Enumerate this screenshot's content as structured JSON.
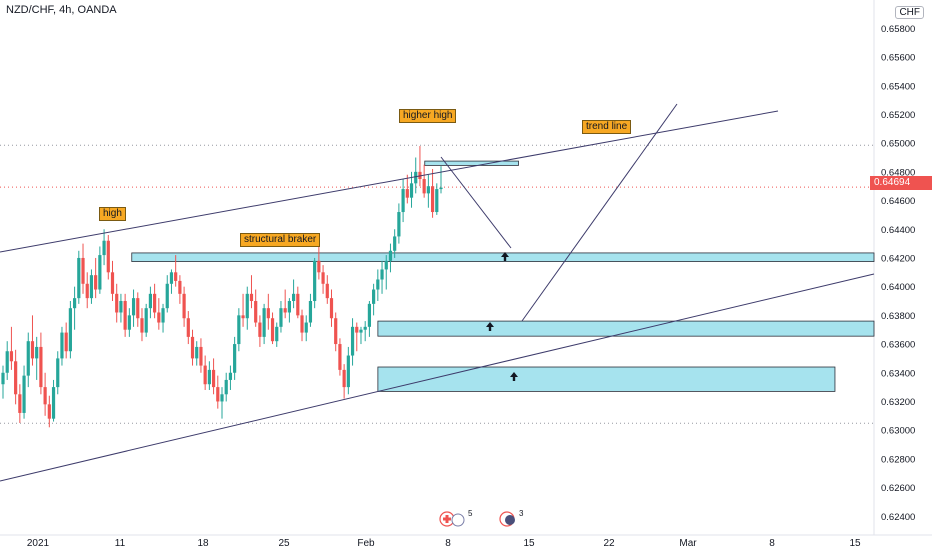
{
  "header": {
    "symbol_title": "NZD/CHF, 4h, OANDA",
    "currency": "CHF"
  },
  "colors": {
    "up": "#26a69a",
    "down": "#ef5350",
    "zone_fill": "#a6e3ee",
    "line": "#3d3b6b",
    "tag": "#f7a823",
    "price_tag": "#ef5350",
    "dotted": "#9598a1"
  },
  "annotations": {
    "higher_high": "higher high",
    "trend_line": "trend line",
    "high": "high",
    "structural_braker": "structural braker"
  },
  "price_label": "0.64694",
  "events": [
    {
      "icon": "flag-icon",
      "count": "5"
    },
    {
      "icon": "flag-icon",
      "count": "3"
    }
  ],
  "chart_data": {
    "type": "candlestick",
    "title": "NZD/CHF, 4h, OANDA",
    "ylim": [
      0.6236,
      0.659
    ],
    "y_ticks": [
      "0.65800",
      "0.65600",
      "0.65400",
      "0.65200",
      "0.65000",
      "0.64800",
      "0.64600",
      "0.64400",
      "0.64200",
      "0.64000",
      "0.63800",
      "0.63600",
      "0.63400",
      "0.63200",
      "0.63000",
      "0.62800",
      "0.62600",
      "0.62400"
    ],
    "x_ticks": [
      "2021",
      "11",
      "18",
      "25",
      "Feb",
      "8",
      "15",
      "22",
      "Mar",
      "8",
      "15"
    ],
    "last_price": 0.64694,
    "horizontal_levels": [
      0.64985,
      0.63048
    ],
    "zones": [
      {
        "from": "2021-01-09",
        "to": "2021-03-23",
        "low": 0.64175,
        "high": 0.64235
      },
      {
        "from": "2021-01-30",
        "to": "2021-03-23",
        "low": 0.63655,
        "high": 0.6376
      },
      {
        "from": "2021-01-30",
        "to": "2021-03-10",
        "low": 0.6327,
        "high": 0.6344
      },
      {
        "from": "2021-02-03",
        "to": "2021-02-11",
        "low": 0.64845,
        "high": 0.64875
      }
    ],
    "candles": [
      [
        0.6332,
        0.6345,
        0.6322,
        0.634
      ],
      [
        0.634,
        0.6362,
        0.6335,
        0.6355
      ],
      [
        0.6355,
        0.6372,
        0.6342,
        0.6348
      ],
      [
        0.6348,
        0.6356,
        0.6318,
        0.6325
      ],
      [
        0.6325,
        0.6332,
        0.6305,
        0.6312
      ],
      [
        0.6312,
        0.6345,
        0.6308,
        0.6338
      ],
      [
        0.6338,
        0.6368,
        0.633,
        0.6362
      ],
      [
        0.6362,
        0.638,
        0.6345,
        0.635
      ],
      [
        0.635,
        0.6365,
        0.6335,
        0.6358
      ],
      [
        0.6358,
        0.6368,
        0.6325,
        0.633
      ],
      [
        0.633,
        0.634,
        0.631,
        0.6318
      ],
      [
        0.6318,
        0.6324,
        0.6302,
        0.6308
      ],
      [
        0.6308,
        0.6335,
        0.6306,
        0.633
      ],
      [
        0.633,
        0.6355,
        0.6325,
        0.635
      ],
      [
        0.635,
        0.6372,
        0.6345,
        0.6368
      ],
      [
        0.6368,
        0.6375,
        0.635,
        0.6355
      ],
      [
        0.6355,
        0.639,
        0.635,
        0.6385
      ],
      [
        0.6385,
        0.64,
        0.637,
        0.6392
      ],
      [
        0.6392,
        0.6425,
        0.6388,
        0.642
      ],
      [
        0.642,
        0.643,
        0.6395,
        0.6402
      ],
      [
        0.6402,
        0.641,
        0.6385,
        0.6392
      ],
      [
        0.6392,
        0.6412,
        0.6388,
        0.6408
      ],
      [
        0.6408,
        0.642,
        0.6392,
        0.6398
      ],
      [
        0.6398,
        0.6428,
        0.6395,
        0.6422
      ],
      [
        0.6422,
        0.644,
        0.6415,
        0.6432
      ],
      [
        0.6432,
        0.6436,
        0.6405,
        0.641
      ],
      [
        0.641,
        0.6418,
        0.639,
        0.6395
      ],
      [
        0.6395,
        0.6402,
        0.6375,
        0.6382
      ],
      [
        0.6382,
        0.6395,
        0.6375,
        0.639
      ],
      [
        0.639,
        0.6395,
        0.6365,
        0.637
      ],
      [
        0.637,
        0.6385,
        0.6365,
        0.638
      ],
      [
        0.638,
        0.6398,
        0.6372,
        0.6392
      ],
      [
        0.6392,
        0.6396,
        0.6372,
        0.6378
      ],
      [
        0.6378,
        0.6385,
        0.6362,
        0.6368
      ],
      [
        0.6368,
        0.6388,
        0.6365,
        0.6385
      ],
      [
        0.6385,
        0.64,
        0.6378,
        0.6395
      ],
      [
        0.6395,
        0.6402,
        0.6378,
        0.6382
      ],
      [
        0.6382,
        0.6392,
        0.637,
        0.6375
      ],
      [
        0.6375,
        0.6388,
        0.6368,
        0.6385
      ],
      [
        0.6385,
        0.6408,
        0.6382,
        0.6402
      ],
      [
        0.6402,
        0.6412,
        0.6395,
        0.641
      ],
      [
        0.641,
        0.6422,
        0.64,
        0.6404
      ],
      [
        0.6404,
        0.6408,
        0.6388,
        0.6395
      ],
      [
        0.6395,
        0.64,
        0.6372,
        0.6378
      ],
      [
        0.6378,
        0.6383,
        0.636,
        0.6365
      ],
      [
        0.6365,
        0.637,
        0.6345,
        0.635
      ],
      [
        0.635,
        0.6362,
        0.6345,
        0.6358
      ],
      [
        0.6358,
        0.6364,
        0.634,
        0.6345
      ],
      [
        0.6345,
        0.6352,
        0.6328,
        0.6332
      ],
      [
        0.6332,
        0.6348,
        0.6328,
        0.6342
      ],
      [
        0.6342,
        0.635,
        0.6325,
        0.633
      ],
      [
        0.633,
        0.6338,
        0.6315,
        0.632
      ],
      [
        0.632,
        0.633,
        0.6308,
        0.6325
      ],
      [
        0.6325,
        0.634,
        0.632,
        0.6335
      ],
      [
        0.6335,
        0.6345,
        0.6328,
        0.634
      ],
      [
        0.634,
        0.6365,
        0.6335,
        0.636
      ],
      [
        0.636,
        0.6385,
        0.6355,
        0.638
      ],
      [
        0.638,
        0.6395,
        0.6372,
        0.6378
      ],
      [
        0.6378,
        0.64,
        0.637,
        0.6395
      ],
      [
        0.6395,
        0.6408,
        0.6385,
        0.639
      ],
      [
        0.639,
        0.6398,
        0.6372,
        0.6375
      ],
      [
        0.6375,
        0.638,
        0.6358,
        0.6365
      ],
      [
        0.6365,
        0.6388,
        0.636,
        0.6385
      ],
      [
        0.6385,
        0.6395,
        0.637,
        0.6378
      ],
      [
        0.6378,
        0.6382,
        0.636,
        0.6362
      ],
      [
        0.6362,
        0.6375,
        0.6358,
        0.6372
      ],
      [
        0.6372,
        0.639,
        0.6368,
        0.6385
      ],
      [
        0.6385,
        0.6398,
        0.6378,
        0.6382
      ],
      [
        0.6382,
        0.6392,
        0.6375,
        0.639
      ],
      [
        0.639,
        0.6405,
        0.6385,
        0.6395
      ],
      [
        0.6395,
        0.64,
        0.6378,
        0.638
      ],
      [
        0.638,
        0.6384,
        0.6362,
        0.6368
      ],
      [
        0.6368,
        0.638,
        0.6362,
        0.6375
      ],
      [
        0.6375,
        0.6395,
        0.6372,
        0.639
      ],
      [
        0.639,
        0.642,
        0.6385,
        0.6418
      ],
      [
        0.6418,
        0.6428,
        0.6405,
        0.641
      ],
      [
        0.641,
        0.6415,
        0.6395,
        0.6402
      ],
      [
        0.6402,
        0.6408,
        0.6388,
        0.6392
      ],
      [
        0.6392,
        0.6398,
        0.6372,
        0.6378
      ],
      [
        0.6378,
        0.6382,
        0.6355,
        0.636
      ],
      [
        0.636,
        0.6364,
        0.6338,
        0.6342
      ],
      [
        0.6342,
        0.6346,
        0.6322,
        0.633
      ],
      [
        0.633,
        0.6358,
        0.6325,
        0.6352
      ],
      [
        0.6352,
        0.6378,
        0.6345,
        0.6372
      ],
      [
        0.6372,
        0.6375,
        0.6355,
        0.6368
      ],
      [
        0.6368,
        0.6372,
        0.636,
        0.637
      ],
      [
        0.637,
        0.6376,
        0.6362,
        0.6372
      ],
      [
        0.6372,
        0.639,
        0.6365,
        0.6388
      ],
      [
        0.6388,
        0.6402,
        0.638,
        0.6398
      ],
      [
        0.6398,
        0.6412,
        0.639,
        0.6405
      ],
      [
        0.6405,
        0.6418,
        0.6395,
        0.6412
      ],
      [
        0.6412,
        0.6422,
        0.6398,
        0.6418
      ],
      [
        0.6418,
        0.643,
        0.641,
        0.6425
      ],
      [
        0.6425,
        0.644,
        0.642,
        0.6435
      ],
      [
        0.6435,
        0.6458,
        0.643,
        0.6452
      ],
      [
        0.6452,
        0.6475,
        0.6445,
        0.6468
      ],
      [
        0.6468,
        0.6478,
        0.6458,
        0.6462
      ],
      [
        0.6462,
        0.648,
        0.6455,
        0.6472
      ],
      [
        0.6472,
        0.649,
        0.6465,
        0.648
      ],
      [
        0.648,
        0.6498,
        0.647,
        0.6475
      ],
      [
        0.6475,
        0.6485,
        0.6462,
        0.6465
      ],
      [
        0.6465,
        0.6478,
        0.6455,
        0.647
      ],
      [
        0.647,
        0.6482,
        0.6448,
        0.6452
      ],
      [
        0.6452,
        0.6472,
        0.645,
        0.6468
      ],
      [
        0.6468,
        0.6484,
        0.6465,
        0.6469
      ]
    ]
  }
}
